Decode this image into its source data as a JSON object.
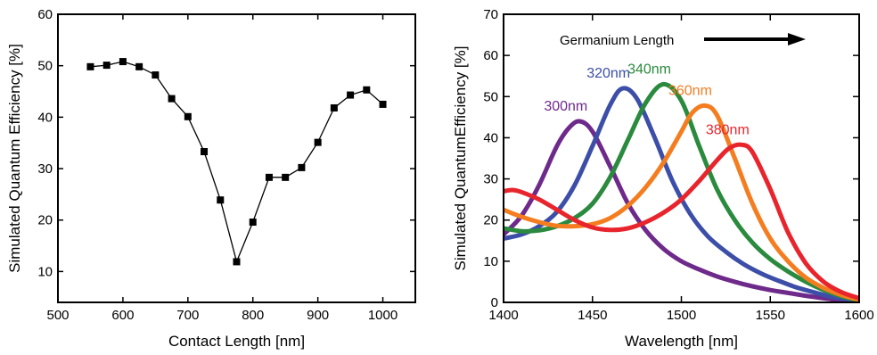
{
  "chart_data": [
    {
      "type": "line",
      "xlabel": "Contact Length [nm]",
      "ylabel": "Simulated Quantum Efficiency [%]",
      "xlim": [
        500,
        1050
      ],
      "ylim": [
        4,
        60
      ],
      "xticks": [
        500,
        600,
        700,
        800,
        900,
        1000
      ],
      "yticks": [
        10,
        20,
        30,
        40,
        50,
        60
      ],
      "marker": "square",
      "color": "#000000",
      "x": [
        550,
        575,
        600,
        625,
        650,
        675,
        700,
        725,
        750,
        775,
        800,
        825,
        850,
        875,
        900,
        925,
        950,
        975,
        1000
      ],
      "y": [
        49.8,
        50.1,
        50.8,
        49.8,
        48.2,
        43.6,
        40.1,
        33.3,
        23.9,
        11.9,
        19.6,
        28.3,
        28.3,
        30.2,
        35.1,
        41.8,
        44.3,
        45.3,
        42.5
      ]
    },
    {
      "type": "line",
      "xlabel": "Wavelength [nm]",
      "ylabel": "Simulated QuantumEfficiency [%]",
      "xlim": [
        1400,
        1600
      ],
      "ylim": [
        0,
        70
      ],
      "xticks": [
        1400,
        1450,
        1500,
        1550,
        1600
      ],
      "yticks": [
        0,
        10,
        20,
        30,
        40,
        50,
        60,
        70
      ],
      "annotation": "Germanium Length",
      "series": [
        {
          "name": "300nm",
          "color": "#6e2a8a",
          "x": [
            1400,
            1410,
            1420,
            1430,
            1437,
            1443,
            1450,
            1460,
            1470,
            1480,
            1490,
            1500,
            1510,
            1520,
            1530,
            1540,
            1550,
            1560,
            1570,
            1580,
            1590,
            1600
          ],
          "y": [
            16.5,
            21.0,
            28.5,
            38.0,
            42.5,
            44.0,
            41.5,
            33.0,
            24.0,
            17.5,
            13.0,
            10.0,
            8.0,
            6.3,
            5.0,
            3.9,
            3.0,
            2.3,
            1.6,
            1.0,
            0.5,
            0.2
          ]
        },
        {
          "name": "320nm",
          "color": "#3c4ea8",
          "x": [
            1400,
            1410,
            1420,
            1430,
            1440,
            1450,
            1460,
            1467,
            1475,
            1485,
            1495,
            1505,
            1515,
            1525,
            1535,
            1545,
            1555,
            1565,
            1575,
            1585,
            1600
          ],
          "y": [
            15.5,
            16.5,
            18.5,
            22.0,
            28.5,
            38.0,
            48.0,
            52.0,
            49.5,
            40.0,
            29.5,
            21.5,
            16.0,
            12.3,
            9.3,
            7.0,
            5.2,
            3.6,
            2.4,
            1.3,
            0.3
          ]
        },
        {
          "name": "340nm",
          "color": "#2a8a3e",
          "x": [
            1400,
            1410,
            1420,
            1430,
            1440,
            1450,
            1460,
            1470,
            1480,
            1490,
            1500,
            1510,
            1520,
            1530,
            1540,
            1550,
            1560,
            1570,
            1580,
            1590,
            1600
          ],
          "y": [
            18.0,
            17.3,
            17.5,
            18.5,
            20.5,
            24.0,
            30.5,
            39.5,
            48.5,
            53.0,
            49.0,
            38.0,
            27.5,
            20.0,
            14.5,
            10.5,
            7.5,
            5.0,
            3.0,
            1.5,
            0.4
          ]
        },
        {
          "name": "360nm",
          "color": "#f47d20",
          "x": [
            1400,
            1410,
            1420,
            1430,
            1440,
            1450,
            1460,
            1470,
            1480,
            1490,
            1500,
            1506,
            1513,
            1520,
            1530,
            1540,
            1550,
            1560,
            1570,
            1580,
            1590,
            1600
          ],
          "y": [
            22.5,
            20.8,
            19.5,
            18.6,
            18.5,
            19.0,
            20.5,
            23.5,
            28.0,
            34.0,
            41.5,
            46.0,
            47.8,
            45.5,
            35.0,
            24.0,
            15.5,
            10.0,
            6.0,
            3.5,
            1.8,
            0.6
          ]
        },
        {
          "name": "380nm",
          "color": "#e8242c",
          "x": [
            1400,
            1405,
            1410,
            1420,
            1430,
            1440,
            1450,
            1460,
            1470,
            1480,
            1490,
            1500,
            1510,
            1520,
            1527,
            1534,
            1540,
            1550,
            1560,
            1570,
            1580,
            1590,
            1600
          ],
          "y": [
            27.0,
            27.3,
            26.8,
            25.0,
            22.5,
            20.0,
            18.2,
            17.6,
            18.0,
            19.5,
            21.8,
            25.0,
            29.5,
            34.5,
            37.5,
            38.3,
            36.5,
            27.5,
            17.0,
            9.5,
            5.0,
            2.5,
            1.0
          ]
        }
      ]
    }
  ]
}
